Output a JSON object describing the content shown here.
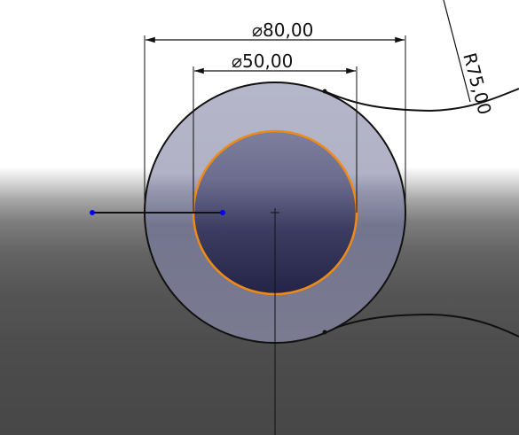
{
  "dimensions": {
    "outer_diameter": {
      "symbol": "⌀",
      "value": "80,00"
    },
    "inner_diameter": {
      "symbol": "⌀",
      "value": "50,00"
    },
    "arc_radius": {
      "value": "R75,00"
    }
  },
  "colors": {
    "sketch_line": "#111111",
    "selected_circle": "#f08a16",
    "sketch_point": "#0000ee",
    "outer_face": "#b3b4c8",
    "inner_face_top": "#7b7c9c",
    "inner_face_bottom": "#25264a"
  }
}
